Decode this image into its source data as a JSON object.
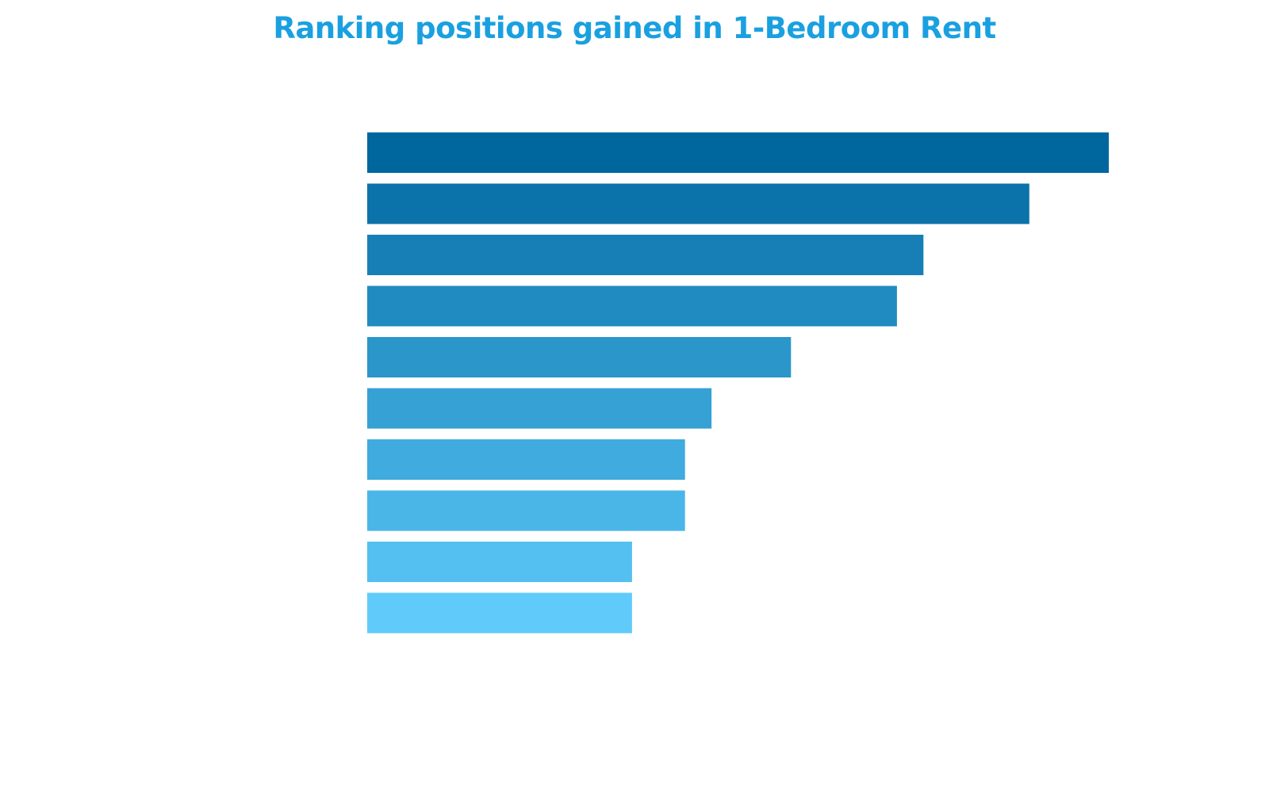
{
  "chart_data": {
    "type": "bar",
    "orientation": "horizontal",
    "title": "Ranking positions gained in 1-Bedroom Rent",
    "xlabel": "",
    "ylabel": "",
    "categories": [
      "",
      "",
      "",
      "",
      "",
      "",
      "",
      "",
      "",
      ""
    ],
    "values": [
      28,
      25,
      21,
      20,
      16,
      13,
      12,
      12,
      10,
      10
    ],
    "xlim": [
      0,
      28
    ],
    "grid": false,
    "legend": "none",
    "title_color": "#1aa0e0",
    "bar_colors": [
      "#00669e",
      "#0c73aa",
      "#177fb5",
      "#208bc0",
      "#2a96ca",
      "#35a1d4",
      "#3fabde",
      "#4ab6e8",
      "#54c0f1",
      "#60cbfa"
    ]
  }
}
